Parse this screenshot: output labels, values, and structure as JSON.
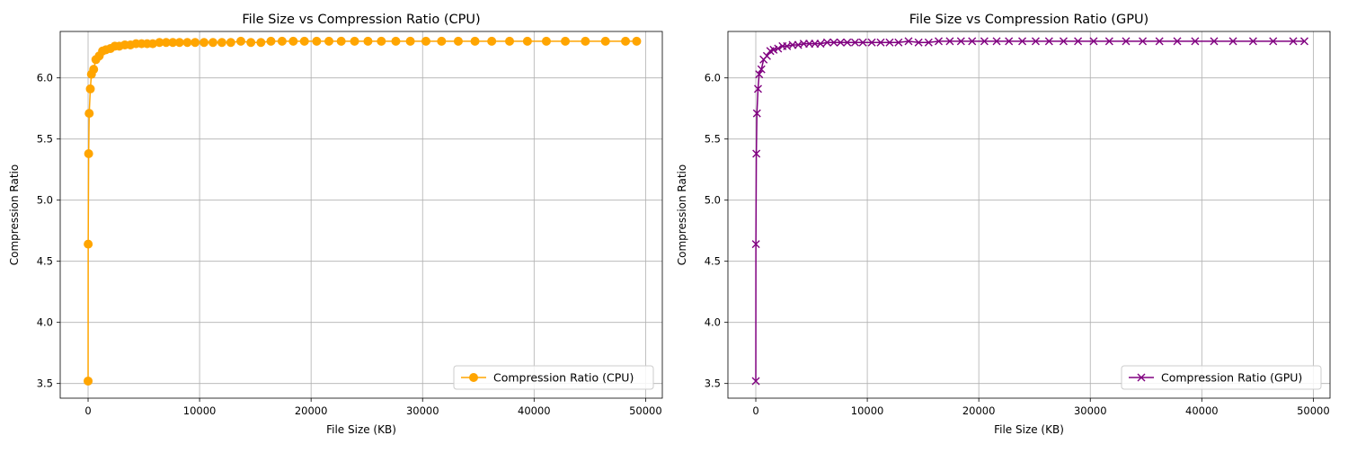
{
  "chart_data": [
    {
      "type": "line",
      "title": "File Size vs Compression Ratio (CPU)",
      "xlabel": "File Size (KB)",
      "ylabel": "Compression Ratio",
      "xlim": [
        -2500,
        51500
      ],
      "ylim": [
        3.38,
        6.38
      ],
      "xticks": [
        0,
        10000,
        20000,
        30000,
        40000,
        50000
      ],
      "yticks": [
        3.5,
        4.0,
        4.5,
        5.0,
        5.5,
        6.0
      ],
      "xtick_labels": [
        "0",
        "10000",
        "20000",
        "30000",
        "40000",
        "50000"
      ],
      "ytick_labels": [
        "3.5",
        "4.0",
        "4.5",
        "5.0",
        "5.5",
        "6.0"
      ],
      "grid": true,
      "legend_position": "lower-right",
      "color": "#ffa500",
      "marker": "circle",
      "series": [
        {
          "name": "Compression Ratio (CPU)",
          "x": [
            1,
            10,
            50,
            100,
            200,
            300,
            500,
            700,
            1000,
            1300,
            1600,
            2000,
            2400,
            2800,
            3300,
            3800,
            4300,
            4800,
            5300,
            5800,
            6400,
            7000,
            7600,
            8200,
            8900,
            9600,
            10400,
            11200,
            12000,
            12800,
            13700,
            14600,
            15500,
            16400,
            17400,
            18400,
            19400,
            20500,
            21600,
            22700,
            23900,
            25100,
            26300,
            27600,
            28900,
            30300,
            31700,
            33200,
            34700,
            36200,
            37800,
            39400,
            41100,
            42800,
            44600,
            46400,
            48200,
            49200
          ],
          "y": [
            3.52,
            4.64,
            5.38,
            5.71,
            5.91,
            6.03,
            6.07,
            6.15,
            6.18,
            6.22,
            6.23,
            6.24,
            6.26,
            6.26,
            6.27,
            6.27,
            6.28,
            6.28,
            6.28,
            6.28,
            6.29,
            6.29,
            6.29,
            6.29,
            6.29,
            6.29,
            6.29,
            6.29,
            6.29,
            6.29,
            6.3,
            6.29,
            6.29,
            6.3,
            6.3,
            6.3,
            6.3,
            6.3,
            6.3,
            6.3,
            6.3,
            6.3,
            6.3,
            6.3,
            6.3,
            6.3,
            6.3,
            6.3,
            6.3,
            6.3,
            6.3,
            6.3,
            6.3,
            6.3,
            6.3,
            6.3,
            6.3,
            6.3
          ]
        }
      ]
    },
    {
      "type": "line",
      "title": "File Size vs Compression Ratio (GPU)",
      "xlabel": "File Size (KB)",
      "ylabel": "Compression Ratio",
      "xlim": [
        -2500,
        51500
      ],
      "ylim": [
        3.38,
        6.38
      ],
      "xticks": [
        0,
        10000,
        20000,
        30000,
        40000,
        50000
      ],
      "yticks": [
        3.5,
        4.0,
        4.5,
        5.0,
        5.5,
        6.0
      ],
      "xtick_labels": [
        "0",
        "10000",
        "20000",
        "30000",
        "40000",
        "50000"
      ],
      "ytick_labels": [
        "3.5",
        "4.0",
        "4.5",
        "5.0",
        "5.5",
        "6.0"
      ],
      "grid": true,
      "legend_position": "lower-right",
      "color": "#800080",
      "marker": "x",
      "series": [
        {
          "name": "Compression Ratio (GPU)",
          "x": [
            1,
            10,
            50,
            100,
            200,
            300,
            500,
            700,
            1000,
            1300,
            1600,
            2000,
            2400,
            2800,
            3300,
            3800,
            4300,
            4800,
            5300,
            5800,
            6400,
            7000,
            7600,
            8200,
            8900,
            9600,
            10400,
            11200,
            12000,
            12800,
            13700,
            14600,
            15500,
            16400,
            17400,
            18400,
            19400,
            20500,
            21600,
            22700,
            23900,
            25100,
            26300,
            27600,
            28900,
            30300,
            31700,
            33200,
            34700,
            36200,
            37800,
            39400,
            41100,
            42800,
            44600,
            46400,
            48200,
            49200
          ],
          "y": [
            3.52,
            4.64,
            5.38,
            5.71,
            5.91,
            6.03,
            6.07,
            6.15,
            6.18,
            6.22,
            6.23,
            6.24,
            6.26,
            6.26,
            6.27,
            6.27,
            6.28,
            6.28,
            6.28,
            6.28,
            6.29,
            6.29,
            6.29,
            6.29,
            6.29,
            6.29,
            6.29,
            6.29,
            6.29,
            6.29,
            6.3,
            6.29,
            6.29,
            6.3,
            6.3,
            6.3,
            6.3,
            6.3,
            6.3,
            6.3,
            6.3,
            6.3,
            6.3,
            6.3,
            6.3,
            6.3,
            6.3,
            6.3,
            6.3,
            6.3,
            6.3,
            6.3,
            6.3,
            6.3,
            6.3,
            6.3,
            6.3,
            6.3
          ]
        }
      ]
    }
  ]
}
